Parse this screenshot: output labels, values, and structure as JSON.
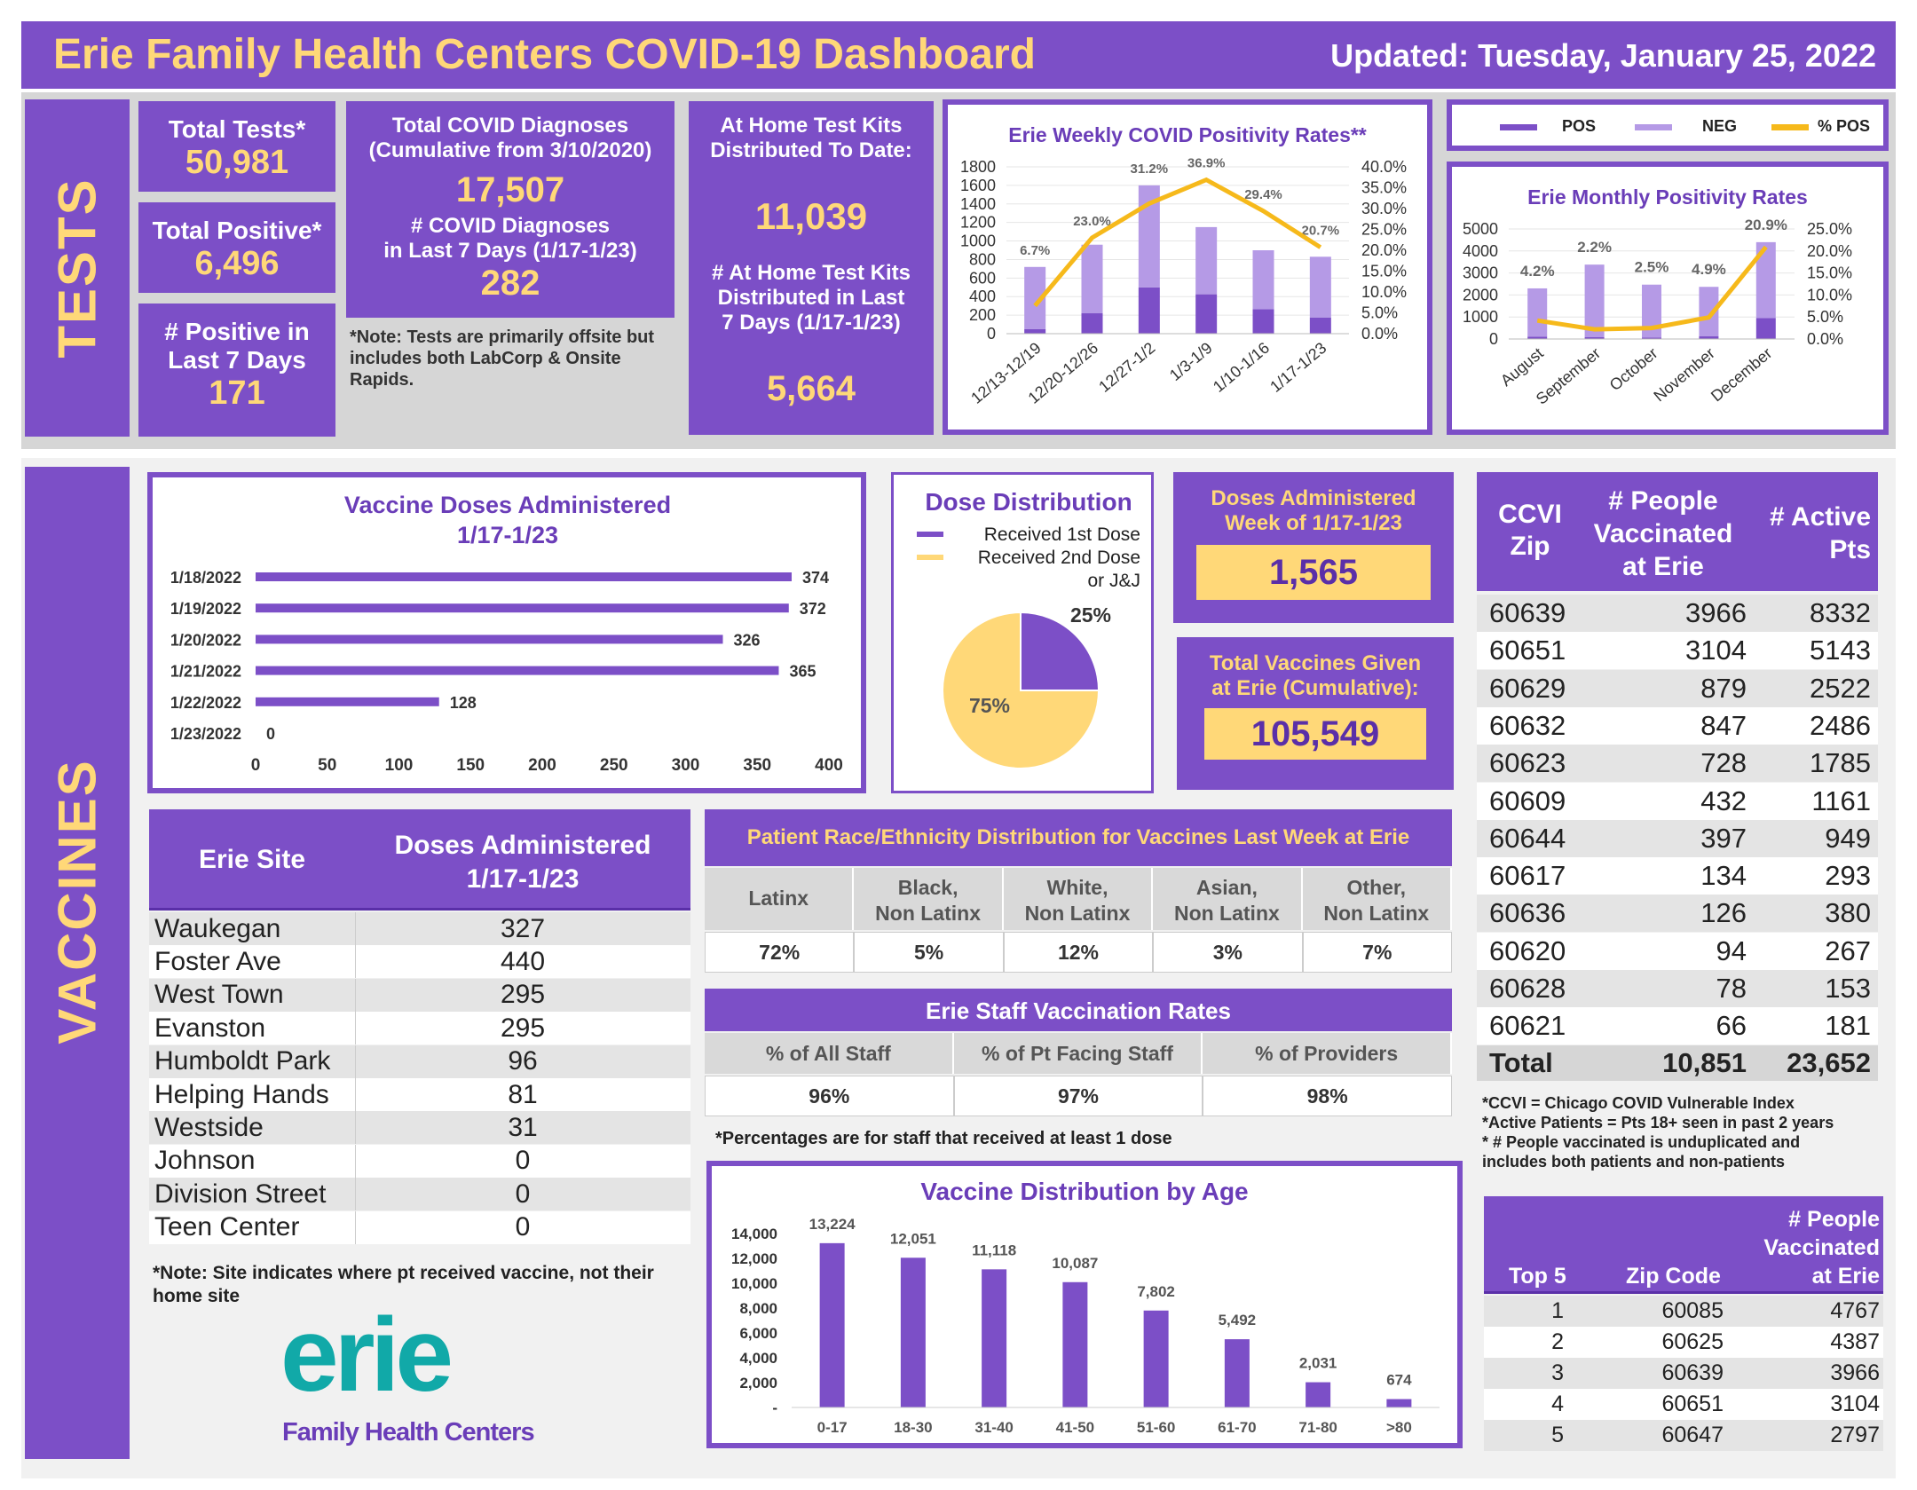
{
  "header": {
    "title": "Erie Family Health Centers COVID-19 Dashboard",
    "updated": "Updated: Tuesday, January 25, 2022"
  },
  "sections": {
    "tests": "TESTS",
    "vaccines": "VACCINES"
  },
  "tests": {
    "total_tests_label": "Total Tests*",
    "total_tests": "50,981",
    "total_positive_label": "Total Positive*",
    "total_positive": "6,496",
    "pos7_label_1": "# Positive in",
    "pos7_label_2": "Last 7 Days",
    "pos7": "171",
    "diag_label_1": "Total COVID Diagnoses",
    "diag_label_2": "(Cumulative from 3/10/2020)",
    "diag": "17,507",
    "diag7_label_1": "# COVID Diagnoses",
    "diag7_label_2": "in Last 7 Days (1/17-1/23)",
    "diag7": "282",
    "note": "*Note: Tests are primarily offsite but includes both LabCorp & Onsite Rapids.",
    "home_label_1": "At Home Test Kits",
    "home_label_2": "Distributed To Date:",
    "home": "11,039",
    "home7_label_1": "# At Home Test Kits",
    "home7_label_2": "Distributed in Last",
    "home7_label_3": "7 Days (1/17-1/23)",
    "home7": "5,664"
  },
  "legend": {
    "pos": "POS",
    "neg": "NEG",
    "pct": "% POS",
    "pos_color": "#7c4fc7",
    "neg_color": "#b59ae6",
    "pct_color": "#f6b91b"
  },
  "dose_legend": {
    "first": "Received 1st  Dose",
    "second_1": "Received 2nd Dose",
    "second_2": "or J&J"
  },
  "doses_week": {
    "label_1": "Doses Administered",
    "label_2": "Week of 1/17-1/23",
    "value": "1,565"
  },
  "total_vax": {
    "label_1": "Total Vaccines Given",
    "label_2": "at Erie (Cumulative):",
    "value": "105,549"
  },
  "sites": {
    "header_site": "Erie Site",
    "header_doses_1": "Doses Administered",
    "header_doses_2": "1/17-1/23",
    "rows": [
      {
        "site": "Waukegan",
        "doses": "327"
      },
      {
        "site": "Foster Ave",
        "doses": "440"
      },
      {
        "site": "West Town",
        "doses": "295"
      },
      {
        "site": "Evanston",
        "doses": "295"
      },
      {
        "site": "Humboldt Park",
        "doses": "96"
      },
      {
        "site": "Helping Hands",
        "doses": "81"
      },
      {
        "site": "Westside",
        "doses": "31"
      },
      {
        "site": "Johnson",
        "doses": "0"
      },
      {
        "site": "Division Street",
        "doses": "0"
      },
      {
        "site": "Teen Center",
        "doses": "0"
      }
    ],
    "note_1": "*Note: Site indicates where pt received vaccine, not their",
    "note_2": "home site"
  },
  "race": {
    "title": "Patient Race/Ethnicity Distribution for Vaccines Last Week at Erie",
    "cols": [
      {
        "l1": "Latinx",
        "l2": "",
        "v": "72%"
      },
      {
        "l1": "Black,",
        "l2": "Non Latinx",
        "v": "5%"
      },
      {
        "l1": "White,",
        "l2": "Non Latinx",
        "v": "12%"
      },
      {
        "l1": "Asian,",
        "l2": "Non Latinx",
        "v": "3%"
      },
      {
        "l1": "Other,",
        "l2": "Non Latinx",
        "v": "7%"
      }
    ]
  },
  "staff": {
    "title": "Erie Staff Vaccination Rates",
    "cols": [
      {
        "l": "% of All Staff",
        "v": "96%"
      },
      {
        "l": "% of Pt Facing Staff",
        "v": "97%"
      },
      {
        "l": "% of Providers",
        "v": "98%"
      }
    ],
    "note": "*Percentages are for staff that received at least 1 dose"
  },
  "ccvi": {
    "h_zip_1": "CCVI",
    "h_zip_2": "Zip",
    "h_vax_1": "# People",
    "h_vax_2": "Vaccinated",
    "h_vax_3": "at Erie",
    "h_act_1": "# Active",
    "h_act_2": "Pts",
    "rows": [
      {
        "zip": "60639",
        "vax": "3966",
        "act": "8332"
      },
      {
        "zip": "60651",
        "vax": "3104",
        "act": "5143"
      },
      {
        "zip": "60629",
        "vax": "879",
        "act": "2522"
      },
      {
        "zip": "60632",
        "vax": "847",
        "act": "2486"
      },
      {
        "zip": "60623",
        "vax": "728",
        "act": "1785"
      },
      {
        "zip": "60609",
        "vax": "432",
        "act": "1161"
      },
      {
        "zip": "60644",
        "vax": "397",
        "act": "949"
      },
      {
        "zip": "60617",
        "vax": "134",
        "act": "293"
      },
      {
        "zip": "60636",
        "vax": "126",
        "act": "380"
      },
      {
        "zip": "60620",
        "vax": "94",
        "act": "267"
      },
      {
        "zip": "60628",
        "vax": "78",
        "act": "153"
      },
      {
        "zip": "60621",
        "vax": "66",
        "act": "181"
      }
    ],
    "total_label": "Total",
    "total_vax": "10,851",
    "total_act": "23,652",
    "note_1": "*CCVI = Chicago COVID Vulnerable Index",
    "note_2": "*Active Patients = Pts 18+ seen in past 2 years",
    "note_3": "* # People vaccinated is unduplicated and",
    "note_4": "includes both patients and non-patients"
  },
  "top5": {
    "h_top": "Top 5",
    "h_zip": "Zip Code",
    "h_vax_1": "# People",
    "h_vax_2": "Vaccinated",
    "h_vax_3": "at Erie",
    "rows": [
      {
        "rank": "1",
        "zip": "60085",
        "vax": "4767"
      },
      {
        "rank": "2",
        "zip": "60625",
        "vax": "4387"
      },
      {
        "rank": "3",
        "zip": "60639",
        "vax": "3966"
      },
      {
        "rank": "4",
        "zip": "60651",
        "vax": "3104"
      },
      {
        "rank": "5",
        "zip": "60647",
        "vax": "2797"
      }
    ]
  },
  "logo": {
    "word": "erie",
    "sub": "Family Health Centers"
  },
  "chart_data": [
    {
      "id": "weekly",
      "type": "bar",
      "title": "Erie Weekly COVID Positivity Rates**",
      "categories": [
        "12/13-12/19",
        "12/20-12/26",
        "12/27-1/2",
        "1/3-1/9",
        "1/10-1/16",
        "1/17-1/23"
      ],
      "series": [
        {
          "name": "POS",
          "values": [
            48,
            220,
            500,
            425,
            265,
            175
          ]
        },
        {
          "name": "NEG",
          "values": [
            672,
            740,
            1100,
            725,
            635,
            655
          ]
        },
        {
          "name": "% POS",
          "values": [
            6.7,
            23.0,
            31.2,
            36.9,
            29.4,
            20.7
          ],
          "axis": "right"
        }
      ],
      "labels": [
        "6.7%",
        "23.0%",
        "31.2%",
        "36.9%",
        "29.4%",
        "20.7%"
      ],
      "yticks": [
        "0",
        "200",
        "400",
        "600",
        "800",
        "1000",
        "1200",
        "1400",
        "1600",
        "1800"
      ],
      "y2ticks": [
        "0.0%",
        "5.0%",
        "10.0%",
        "15.0%",
        "20.0%",
        "25.0%",
        "30.0%",
        "35.0%",
        "40.0%"
      ],
      "ylim": [
        0,
        1800
      ],
      "y2lim": [
        0,
        40
      ]
    },
    {
      "id": "monthly",
      "type": "bar",
      "title": "Erie Monthly Positivity Rates",
      "categories": [
        "August",
        "September",
        "October",
        "November",
        "December"
      ],
      "series": [
        {
          "name": "POS",
          "values": [
            100,
            80,
            70,
            120,
            950
          ]
        },
        {
          "name": "NEG",
          "values": [
            2200,
            3300,
            2400,
            2250,
            3450
          ]
        },
        {
          "name": "% POS",
          "values": [
            4.2,
            2.2,
            2.5,
            4.9,
            20.9
          ],
          "axis": "right"
        }
      ],
      "labels": [
        "4.2%",
        "2.2%",
        "2.5%",
        "4.9%",
        "20.9%"
      ],
      "yticks": [
        "0",
        "1000",
        "2000",
        "3000",
        "4000",
        "5000"
      ],
      "y2ticks": [
        "0.0%",
        "5.0%",
        "10.0%",
        "15.0%",
        "20.0%",
        "25.0%"
      ],
      "ylim": [
        0,
        5000
      ],
      "y2lim": [
        0,
        25
      ]
    },
    {
      "id": "doses",
      "type": "bar",
      "orientation": "horizontal",
      "title_1": "Vaccine Doses Administered",
      "title_2": "1/17-1/23",
      "categories": [
        "1/18/2022",
        "1/19/2022",
        "1/20/2022",
        "1/21/2022",
        "1/22/2022",
        "1/23/2022"
      ],
      "values": [
        374,
        372,
        326,
        365,
        128,
        0
      ],
      "labels": [
        "374",
        "372",
        "326",
        "365",
        "128",
        "0"
      ],
      "xticks": [
        "0",
        "50",
        "100",
        "150",
        "200",
        "250",
        "300",
        "350",
        "400"
      ],
      "xlim": [
        0,
        400
      ]
    },
    {
      "id": "dosepie",
      "type": "pie",
      "title": "Dose Distribution",
      "categories": [
        "Received 1st  Dose",
        "Received 2nd Dose or J&J"
      ],
      "values": [
        25,
        75
      ],
      "labels": [
        "25%",
        "75%"
      ],
      "colors": [
        "#7c4fc7",
        "#ffd878"
      ]
    },
    {
      "id": "age",
      "type": "bar",
      "title": "Vaccine Distribution by Age",
      "categories": [
        "0-17",
        "18-30",
        "31-40",
        "41-50",
        "51-60",
        "61-70",
        "71-80",
        ">80"
      ],
      "values": [
        13224,
        12051,
        11118,
        10087,
        7802,
        5492,
        2031,
        674
      ],
      "labels": [
        "13,224",
        "12,051",
        "11,118",
        "10,087",
        "7,802",
        "5,492",
        "2,031",
        "674"
      ],
      "yticks": [
        "-",
        "2,000",
        "4,000",
        "6,000",
        "8,000",
        "10,000",
        "12,000",
        "14,000"
      ],
      "ylim": [
        0,
        14000
      ]
    }
  ]
}
